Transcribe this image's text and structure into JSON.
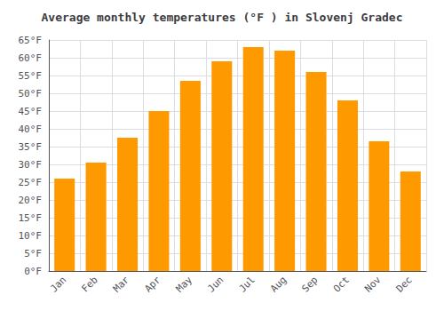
{
  "chart_data": {
    "type": "bar",
    "title": "Average monthly temperatures (°F ) in Slovenj Gradec",
    "categories": [
      "Jan",
      "Feb",
      "Mar",
      "Apr",
      "May",
      "Jun",
      "Jul",
      "Aug",
      "Sep",
      "Oct",
      "Nov",
      "Dec"
    ],
    "values": [
      26,
      30.5,
      37.5,
      45,
      53.5,
      59,
      63,
      62,
      56,
      48,
      36.5,
      28
    ],
    "color": "#FF9900",
    "ylim": [
      0,
      65
    ],
    "yticks": [
      {
        "value": 0,
        "label": "0°F"
      },
      {
        "value": 5,
        "label": "5°F"
      },
      {
        "value": 10,
        "label": "10°F"
      },
      {
        "value": 15,
        "label": "15°F"
      },
      {
        "value": 20,
        "label": "20°F"
      },
      {
        "value": 25,
        "label": "25°F"
      },
      {
        "value": 30,
        "label": "30°F"
      },
      {
        "value": 35,
        "label": "35°F"
      },
      {
        "value": 40,
        "label": "40°F"
      },
      {
        "value": 45,
        "label": "45°F"
      },
      {
        "value": 50,
        "label": "50°F"
      },
      {
        "value": 55,
        "label": "55°F"
      },
      {
        "value": 60,
        "label": "60°F"
      },
      {
        "value": 65,
        "label": "65°F"
      }
    ],
    "grid": true
  }
}
